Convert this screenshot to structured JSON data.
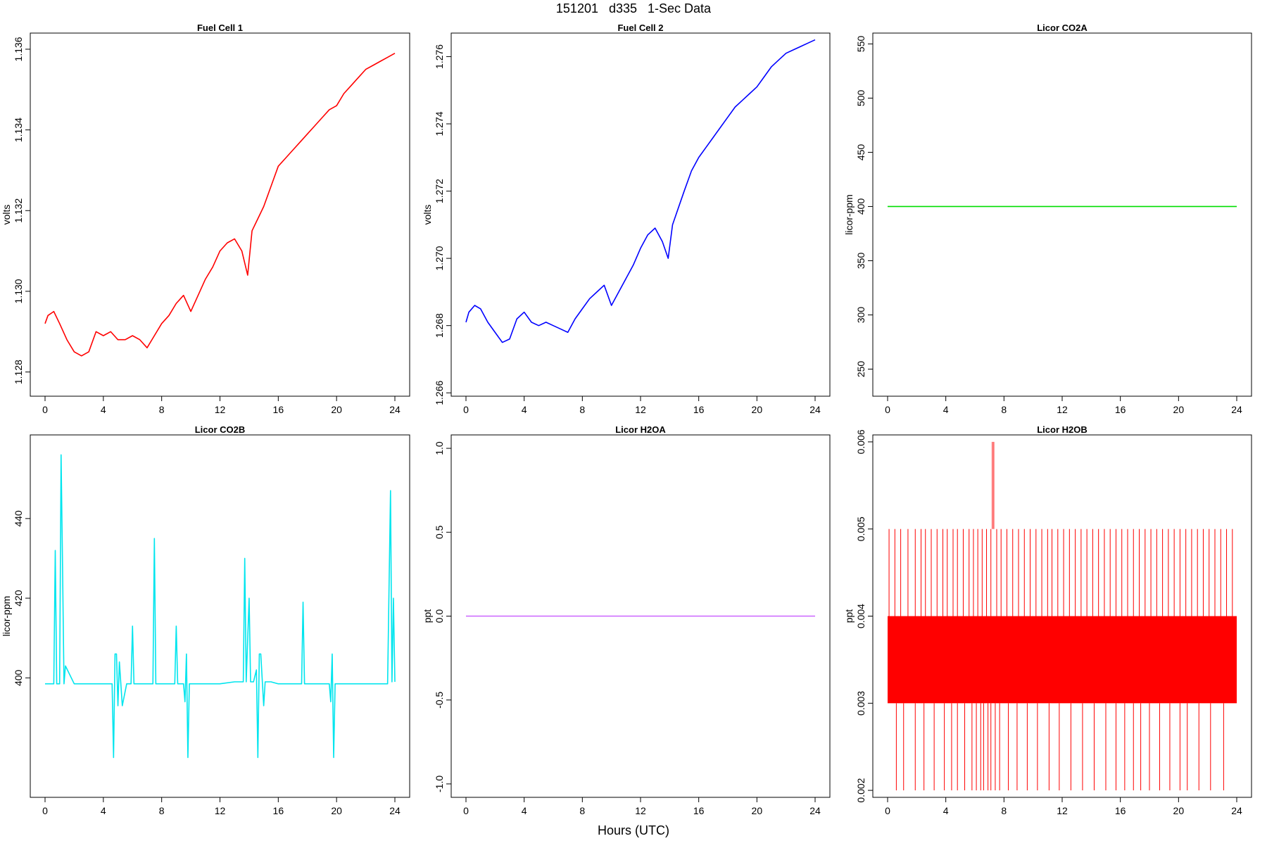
{
  "figure": {
    "title": "151201   d335   1-Sec Data",
    "xlabel": "Hours (UTC)"
  },
  "chart_data": [
    {
      "type": "line",
      "title": "Fuel Cell 1",
      "ylabel": "volts",
      "color": "#ff0000",
      "xlim": [
        0,
        24
      ],
      "ylim": [
        1.1274,
        1.1364
      ],
      "xticks": [
        0,
        4,
        8,
        12,
        16,
        20,
        24
      ],
      "yticks": [
        1.128,
        1.13,
        1.132,
        1.134,
        1.136
      ],
      "ytick_labels": [
        "1.128",
        "1.130",
        "1.132",
        "1.134",
        "1.136"
      ],
      "series": [
        {
          "x": [
            0,
            0.2,
            0.6,
            1.0,
            1.5,
            2.0,
            2.5,
            3.0,
            3.5,
            4.0,
            4.5,
            5.0,
            5.5,
            6.0,
            6.5,
            7.0,
            7.5,
            8.0,
            8.5,
            9.0,
            9.5,
            10.0,
            10.5,
            11.0,
            11.5,
            12.0,
            12.5,
            13.0,
            13.5,
            13.9,
            14.2,
            14.6,
            15.0,
            15.5,
            16.0,
            16.5,
            17.0,
            17.5,
            18.0,
            18.5,
            19.0,
            19.5,
            20.0,
            20.5,
            21.0,
            21.5,
            22.0,
            22.5,
            23.0,
            23.5,
            24.0
          ],
          "y": [
            1.1292,
            1.1294,
            1.1295,
            1.1292,
            1.1288,
            1.1285,
            1.1284,
            1.1285,
            1.129,
            1.1289,
            1.129,
            1.1288,
            1.1288,
            1.1289,
            1.1288,
            1.1286,
            1.1289,
            1.1292,
            1.1294,
            1.1297,
            1.1299,
            1.1295,
            1.1299,
            1.1303,
            1.1306,
            1.131,
            1.1312,
            1.1313,
            1.131,
            1.1304,
            1.1315,
            1.1318,
            1.1321,
            1.1326,
            1.1331,
            1.1333,
            1.1335,
            1.1337,
            1.1339,
            1.1341,
            1.1343,
            1.1345,
            1.1346,
            1.1349,
            1.1351,
            1.1353,
            1.1355,
            1.1356,
            1.1357,
            1.1358,
            1.1359
          ]
        }
      ]
    },
    {
      "type": "line",
      "title": "Fuel Cell 2",
      "ylabel": "volts",
      "color": "#0000ff",
      "xlim": [
        0,
        24
      ],
      "ylim": [
        1.2659,
        1.2767
      ],
      "xticks": [
        0,
        4,
        8,
        12,
        16,
        20,
        24
      ],
      "yticks": [
        1.266,
        1.268,
        1.27,
        1.272,
        1.274,
        1.276
      ],
      "ytick_labels": [
        "1.266",
        "1.268",
        "1.270",
        "1.272",
        "1.274",
        "1.276"
      ],
      "series": [
        {
          "x": [
            0,
            0.2,
            0.6,
            1.0,
            1.5,
            2.0,
            2.5,
            3.0,
            3.5,
            4.0,
            4.5,
            5.0,
            5.5,
            6.0,
            6.5,
            7.0,
            7.5,
            8.0,
            8.5,
            9.0,
            9.5,
            10.0,
            10.5,
            11.0,
            11.5,
            12.0,
            12.5,
            13.0,
            13.5,
            13.9,
            14.2,
            14.6,
            15.0,
            15.5,
            16.0,
            16.5,
            17.0,
            17.5,
            18.0,
            18.5,
            19.0,
            19.5,
            20.0,
            20.5,
            21.0,
            21.5,
            22.0,
            22.5,
            23.0,
            23.5,
            24.0
          ],
          "y": [
            1.2681,
            1.2684,
            1.2686,
            1.2685,
            1.2681,
            1.2678,
            1.2675,
            1.2676,
            1.2682,
            1.2684,
            1.2681,
            1.268,
            1.2681,
            1.268,
            1.2679,
            1.2678,
            1.2682,
            1.2685,
            1.2688,
            1.269,
            1.2692,
            1.2686,
            1.269,
            1.2694,
            1.2698,
            1.2703,
            1.2707,
            1.2709,
            1.2705,
            1.27,
            1.271,
            1.2715,
            1.272,
            1.2726,
            1.273,
            1.2733,
            1.2736,
            1.2739,
            1.2742,
            1.2745,
            1.2747,
            1.2749,
            1.2751,
            1.2754,
            1.2757,
            1.2759,
            1.2761,
            1.2762,
            1.2763,
            1.2764,
            1.2765
          ]
        }
      ]
    },
    {
      "type": "line",
      "title": "Licor CO2A",
      "ylabel": "licor-ppm",
      "color": "#00dd00",
      "xlim": [
        0,
        24
      ],
      "ylim": [
        225,
        560
      ],
      "xticks": [
        0,
        4,
        8,
        12,
        16,
        20,
        24
      ],
      "yticks": [
        250,
        300,
        350,
        400,
        450,
        500,
        550
      ],
      "ytick_labels": [
        "250",
        "300",
        "350",
        "400",
        "450",
        "500",
        "550"
      ],
      "series": [
        {
          "x": [
            0,
            24
          ],
          "y": [
            400,
            400
          ]
        }
      ]
    },
    {
      "type": "line",
      "title": "Licor CO2B",
      "ylabel": "licor-ppm",
      "color": "#00e5ee",
      "xlim": [
        0,
        24
      ],
      "ylim": [
        370,
        461
      ],
      "xticks": [
        0,
        4,
        8,
        12,
        16,
        20,
        24
      ],
      "yticks": [
        400,
        420,
        440
      ],
      "ytick_labels": [
        "400",
        "420",
        "440"
      ],
      "series": [
        {
          "x": [
            0,
            0.6,
            0.7,
            0.8,
            1.0,
            1.1,
            1.2,
            1.3,
            1.4,
            2.0,
            3.0,
            4.0,
            4.6,
            4.7,
            4.8,
            4.9,
            5.0,
            5.1,
            5.3,
            5.6,
            5.9,
            6.0,
            6.1,
            7.0,
            7.4,
            7.5,
            7.6,
            7.8,
            8.5,
            8.9,
            9.0,
            9.1,
            9.5,
            9.6,
            9.7,
            9.8,
            9.9,
            10.0,
            11.0,
            12.0,
            13.0,
            13.6,
            13.7,
            13.8,
            14.0,
            14.1,
            14.3,
            14.5,
            14.6,
            14.7,
            14.8,
            15.0,
            15.1,
            15.5,
            16.0,
            17.0,
            17.6,
            17.7,
            17.8,
            18.5,
            19.5,
            19.6,
            19.7,
            19.8,
            19.9,
            20.0,
            21.0,
            22.0,
            23.0,
            23.5,
            23.7,
            23.8,
            23.9,
            24.0
          ],
          "y": [
            398.5,
            398.5,
            432,
            398.5,
            398.5,
            456,
            428,
            398.5,
            403,
            398.5,
            398.5,
            398.5,
            398.5,
            380,
            406,
            406,
            393,
            404,
            393,
            398.5,
            398.5,
            413,
            398.5,
            398.5,
            398.5,
            435,
            398.5,
            398.5,
            398.5,
            398.5,
            413,
            398.5,
            398.5,
            394,
            406,
            380,
            398.5,
            398.5,
            398.5,
            398.5,
            399,
            399,
            430,
            399,
            420,
            399,
            399,
            402,
            380,
            406,
            406,
            393,
            399,
            399,
            398.5,
            398.5,
            398.5,
            419,
            398.5,
            398.5,
            398.5,
            394,
            406,
            380,
            398.5,
            398.5,
            398.5,
            398.5,
            398.5,
            398.5,
            447,
            399,
            420,
            399
          ]
        }
      ]
    },
    {
      "type": "line",
      "title": "Licor H2OA",
      "ylabel": "ppt",
      "color": "#cc66ff",
      "xlim": [
        0,
        24
      ],
      "ylim": [
        -1.08,
        1.08
      ],
      "xticks": [
        0,
        4,
        8,
        12,
        16,
        20,
        24
      ],
      "yticks": [
        -1.0,
        -0.5,
        0.0,
        0.5,
        1.0
      ],
      "ytick_labels": [
        "-1.0",
        "-0.5",
        "0.0",
        "0.5",
        "1.0"
      ],
      "series": [
        {
          "x": [
            0,
            24
          ],
          "y": [
            0,
            0
          ]
        }
      ]
    },
    {
      "type": "area",
      "title": "Licor H2OB",
      "ylabel": "ppt",
      "color": "#ff0000",
      "xlim": [
        0,
        24
      ],
      "ylim": [
        0.00192,
        0.00608
      ],
      "xticks": [
        0,
        4,
        8,
        12,
        16,
        20,
        24
      ],
      "yticks": [
        0.002,
        0.003,
        0.004,
        0.005,
        0.006
      ],
      "ytick_labels": [
        "0.002",
        "0.003",
        "0.004",
        "0.005",
        "0.006"
      ],
      "band": {
        "x": [
          0,
          24
        ],
        "low": 0.003,
        "high": 0.004
      },
      "upper_spikes": {
        "value": 0.005,
        "x": [
          0.1,
          0.5,
          0.9,
          1.4,
          1.9,
          2.3,
          2.6,
          3.0,
          3.4,
          3.8,
          4.1,
          4.5,
          4.8,
          5.2,
          5.6,
          5.9,
          6.2,
          6.5,
          6.8,
          7.1,
          7.5,
          7.8,
          8.2,
          8.6,
          9.0,
          9.4,
          9.8,
          10.2,
          10.6,
          11.0,
          11.3,
          11.7,
          12.1,
          12.5,
          12.9,
          13.3,
          13.7,
          14.1,
          14.5,
          14.9,
          15.3,
          15.7,
          16.1,
          16.5,
          16.9,
          17.3,
          17.7,
          18.1,
          18.5,
          18.9,
          19.3,
          19.7,
          20.1,
          20.5,
          20.9,
          21.3,
          21.7,
          22.1,
          22.5,
          22.9,
          23.3,
          23.7
        ]
      },
      "peak_spikes": {
        "value": 0.006,
        "x": [
          7.2,
          7.3
        ]
      },
      "lower_spikes": {
        "value": 0.002,
        "x": [
          0.6,
          1.1,
          1.9,
          2.5,
          3.2,
          3.9,
          4.4,
          4.8,
          5.3,
          5.8,
          6.1,
          6.4,
          6.6,
          6.9,
          7.1,
          7.4,
          7.7,
          8.3,
          8.9,
          9.6,
          10.3,
          11.1,
          11.8,
          12.6,
          13.4,
          14.2,
          15.0,
          15.7,
          16.3,
          16.9,
          17.4,
          18.0,
          18.7,
          19.4,
          20.1,
          20.6,
          21.4,
          22.2,
          23.1
        ]
      }
    }
  ]
}
